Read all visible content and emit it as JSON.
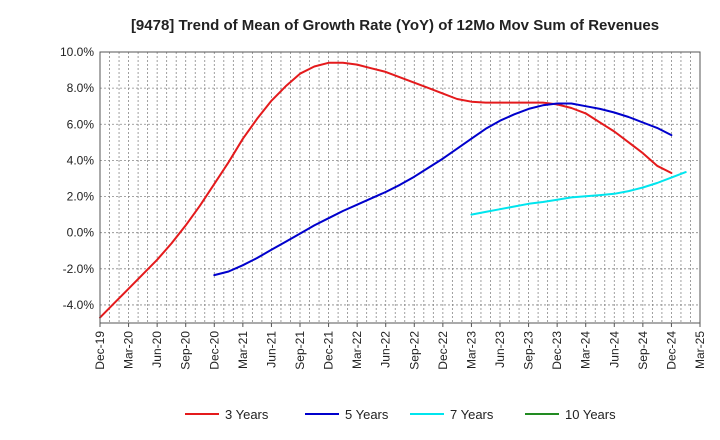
{
  "chart_data": {
    "type": "line",
    "title": "[9478]  Trend of Mean of Growth Rate (YoY) of 12Mo Mov Sum of Revenues",
    "xlabel": "",
    "ylabel": "",
    "ylim": [
      -5.0,
      10.0
    ],
    "y_ticks": [
      -4.0,
      -2.0,
      0.0,
      2.0,
      4.0,
      6.0,
      8.0,
      10.0
    ],
    "y_tick_labels": [
      "-4.0%",
      "-2.0%",
      "0.0%",
      "2.0%",
      "4.0%",
      "6.0%",
      "8.0%",
      "10.0%"
    ],
    "x_tick_labels": [
      "Dec-19",
      "Mar-20",
      "Jun-20",
      "Sep-20",
      "Dec-20",
      "Mar-21",
      "Jun-21",
      "Sep-21",
      "Dec-21",
      "Mar-22",
      "Jun-22",
      "Sep-22",
      "Dec-22",
      "Mar-23",
      "Jun-23",
      "Sep-23",
      "Dec-23",
      "Mar-24",
      "Jun-24",
      "Sep-24",
      "Dec-24",
      "Mar-25"
    ],
    "grid": true,
    "legend_position": "bottom",
    "series": [
      {
        "name": "3 Years",
        "color": "#e41a1c",
        "start_index": 0,
        "values": [
          -4.7,
          -3.9,
          -3.1,
          -2.3,
          -1.5,
          -0.6,
          0.4,
          1.5,
          2.7,
          3.9,
          5.2,
          6.3,
          7.3,
          8.1,
          8.8,
          9.2,
          9.4,
          9.4,
          9.3,
          9.1,
          8.9,
          8.6,
          8.3,
          8.0,
          7.7,
          7.4,
          7.25,
          7.2,
          7.2,
          7.2,
          7.2,
          7.2,
          7.1,
          6.9,
          6.6,
          6.1,
          5.6,
          5.0,
          4.4,
          3.7,
          3.3
        ]
      },
      {
        "name": "5 Years",
        "color": "#0000cc",
        "start_index": 8,
        "values": [
          -2.35,
          -2.15,
          -1.8,
          -1.4,
          -0.95,
          -0.5,
          -0.05,
          0.4,
          0.8,
          1.2,
          1.55,
          1.9,
          2.25,
          2.65,
          3.1,
          3.6,
          4.1,
          4.65,
          5.2,
          5.75,
          6.2,
          6.55,
          6.85,
          7.05,
          7.15,
          7.15,
          7.0,
          6.85,
          6.65,
          6.4,
          6.1,
          5.8,
          5.4
        ]
      },
      {
        "name": "7 Years",
        "color": "#00e5ee",
        "start_index": 26,
        "values": [
          1.0,
          1.15,
          1.3,
          1.45,
          1.6,
          1.7,
          1.82,
          1.95,
          2.02,
          2.08,
          2.15,
          2.3,
          2.5,
          2.75,
          3.05,
          3.35
        ]
      },
      {
        "name": "10 Years",
        "color": "#228b22",
        "start_index": 0,
        "values": []
      }
    ]
  }
}
